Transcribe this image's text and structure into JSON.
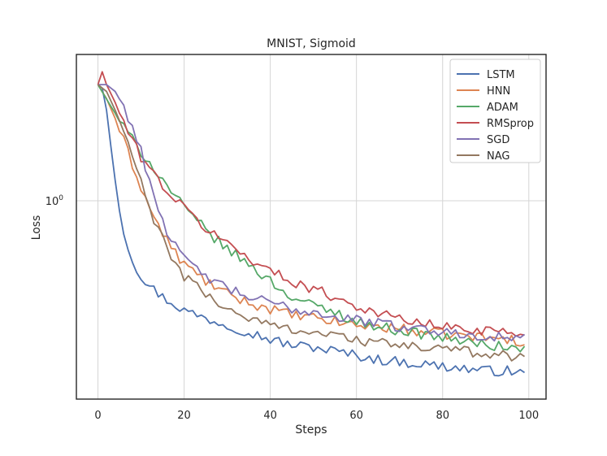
{
  "chart_data": {
    "type": "line",
    "title": "MNIST, Sigmoid",
    "xlabel": "Steps",
    "ylabel": "Loss",
    "yscale": "log",
    "xlim": [
      -5,
      104
    ],
    "ylim": [
      0.26,
      2.7
    ],
    "xticks": [
      0,
      20,
      40,
      60,
      80,
      100
    ],
    "xtick_labels": [
      "0",
      "20",
      "40",
      "60",
      "80",
      "100"
    ],
    "yticks": [
      1.0
    ],
    "ytick_labels": [
      "10^0"
    ],
    "grid": true,
    "legend_position": "top-right",
    "series": [
      {
        "name": "LSTM",
        "color": "#4c72b0",
        "anchors": [
          [
            0,
            2.2
          ],
          [
            1,
            2.15
          ],
          [
            2,
            1.85
          ],
          [
            3,
            1.45
          ],
          [
            4,
            1.15
          ],
          [
            5,
            0.95
          ],
          [
            6,
            0.82
          ],
          [
            7,
            0.73
          ],
          [
            8,
            0.67
          ],
          [
            10,
            0.6
          ],
          [
            12,
            0.56
          ],
          [
            15,
            0.52
          ],
          [
            20,
            0.475
          ],
          [
            25,
            0.45
          ],
          [
            30,
            0.43
          ],
          [
            35,
            0.41
          ],
          [
            40,
            0.39
          ],
          [
            45,
            0.375
          ],
          [
            50,
            0.37
          ],
          [
            55,
            0.36
          ],
          [
            60,
            0.35
          ],
          [
            65,
            0.34
          ],
          [
            70,
            0.335
          ],
          [
            75,
            0.33
          ],
          [
            80,
            0.325
          ],
          [
            85,
            0.32
          ],
          [
            90,
            0.315
          ],
          [
            95,
            0.315
          ],
          [
            99,
            0.31
          ]
        ]
      },
      {
        "name": "HNN",
        "color": "#dd8452",
        "anchors": [
          [
            0,
            2.2
          ],
          [
            2,
            2.0
          ],
          [
            4,
            1.75
          ],
          [
            6,
            1.5
          ],
          [
            8,
            1.28
          ],
          [
            10,
            1.1
          ],
          [
            12,
            0.95
          ],
          [
            15,
            0.8
          ],
          [
            18,
            0.7
          ],
          [
            20,
            0.65
          ],
          [
            25,
            0.58
          ],
          [
            30,
            0.53
          ],
          [
            35,
            0.5
          ],
          [
            40,
            0.48
          ],
          [
            45,
            0.46
          ],
          [
            50,
            0.45
          ],
          [
            55,
            0.44
          ],
          [
            60,
            0.43
          ],
          [
            65,
            0.425
          ],
          [
            70,
            0.42
          ],
          [
            75,
            0.41
          ],
          [
            80,
            0.405
          ],
          [
            85,
            0.4
          ],
          [
            90,
            0.395
          ],
          [
            95,
            0.39
          ],
          [
            99,
            0.385
          ]
        ]
      },
      {
        "name": "ADAM",
        "color": "#55a868",
        "anchors": [
          [
            0,
            2.2
          ],
          [
            3,
            1.9
          ],
          [
            6,
            1.65
          ],
          [
            9,
            1.45
          ],
          [
            12,
            1.3
          ],
          [
            15,
            1.15
          ],
          [
            18,
            1.03
          ],
          [
            20,
            0.95
          ],
          [
            25,
            0.82
          ],
          [
            30,
            0.72
          ],
          [
            35,
            0.65
          ],
          [
            40,
            0.58
          ],
          [
            45,
            0.52
          ],
          [
            50,
            0.49
          ],
          [
            55,
            0.47
          ],
          [
            60,
            0.44
          ],
          [
            65,
            0.425
          ],
          [
            70,
            0.415
          ],
          [
            75,
            0.405
          ],
          [
            80,
            0.395
          ],
          [
            85,
            0.385
          ],
          [
            90,
            0.375
          ],
          [
            95,
            0.37
          ],
          [
            99,
            0.365
          ]
        ]
      },
      {
        "name": "RMSprop",
        "color": "#c44e52",
        "anchors": [
          [
            0,
            2.2
          ],
          [
            1,
            2.4
          ],
          [
            2,
            2.2
          ],
          [
            4,
            1.95
          ],
          [
            6,
            1.7
          ],
          [
            8,
            1.5
          ],
          [
            10,
            1.35
          ],
          [
            13,
            1.2
          ],
          [
            16,
            1.07
          ],
          [
            20,
            0.95
          ],
          [
            25,
            0.83
          ],
          [
            30,
            0.75
          ],
          [
            35,
            0.68
          ],
          [
            40,
            0.62
          ],
          [
            45,
            0.58
          ],
          [
            50,
            0.55
          ],
          [
            55,
            0.52
          ],
          [
            60,
            0.49
          ],
          [
            65,
            0.465
          ],
          [
            70,
            0.45
          ],
          [
            75,
            0.435
          ],
          [
            80,
            0.425
          ],
          [
            85,
            0.42
          ],
          [
            90,
            0.415
          ],
          [
            95,
            0.41
          ],
          [
            99,
            0.405
          ]
        ]
      },
      {
        "name": "SGD",
        "color": "#8172b3",
        "anchors": [
          [
            0,
            2.2
          ],
          [
            2,
            2.2
          ],
          [
            4,
            2.1
          ],
          [
            6,
            1.9
          ],
          [
            8,
            1.65
          ],
          [
            10,
            1.4
          ],
          [
            12,
            1.15
          ],
          [
            14,
            0.95
          ],
          [
            16,
            0.82
          ],
          [
            18,
            0.73
          ],
          [
            20,
            0.67
          ],
          [
            25,
            0.6
          ],
          [
            30,
            0.55
          ],
          [
            35,
            0.52
          ],
          [
            40,
            0.5
          ],
          [
            45,
            0.48
          ],
          [
            50,
            0.47
          ],
          [
            55,
            0.455
          ],
          [
            60,
            0.445
          ],
          [
            65,
            0.435
          ],
          [
            70,
            0.425
          ],
          [
            75,
            0.42
          ],
          [
            80,
            0.41
          ],
          [
            85,
            0.405
          ],
          [
            90,
            0.4
          ],
          [
            95,
            0.395
          ],
          [
            99,
            0.39
          ]
        ]
      },
      {
        "name": "NAG",
        "color": "#937860",
        "anchors": [
          [
            0,
            2.2
          ],
          [
            2,
            2.1
          ],
          [
            4,
            1.85
          ],
          [
            6,
            1.6
          ],
          [
            8,
            1.35
          ],
          [
            10,
            1.13
          ],
          [
            12,
            0.95
          ],
          [
            14,
            0.82
          ],
          [
            16,
            0.72
          ],
          [
            18,
            0.65
          ],
          [
            20,
            0.6
          ],
          [
            25,
            0.53
          ],
          [
            30,
            0.48
          ],
          [
            35,
            0.45
          ],
          [
            40,
            0.43
          ],
          [
            45,
            0.42
          ],
          [
            50,
            0.41
          ],
          [
            55,
            0.4
          ],
          [
            60,
            0.39
          ],
          [
            65,
            0.38
          ],
          [
            70,
            0.375
          ],
          [
            75,
            0.37
          ],
          [
            80,
            0.365
          ],
          [
            85,
            0.36
          ],
          [
            90,
            0.355
          ],
          [
            95,
            0.35
          ],
          [
            99,
            0.345
          ]
        ]
      }
    ]
  }
}
